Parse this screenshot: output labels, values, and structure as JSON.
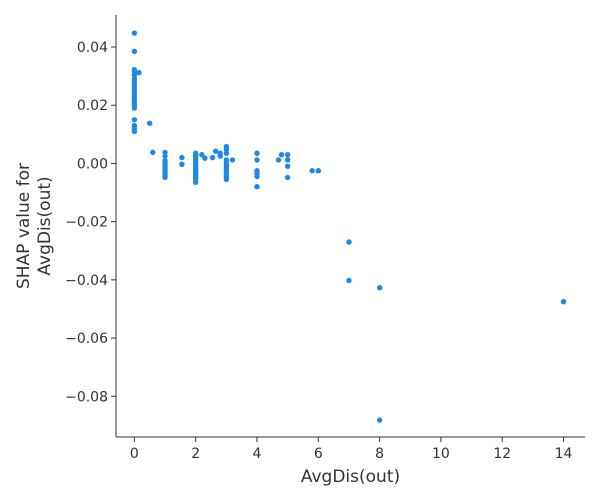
{
  "chart_data": {
    "type": "scatter",
    "title": "",
    "xlabel": "AvgDis(out)",
    "ylabel_lines": [
      "SHAP value for",
      "AvgDis(out)"
    ],
    "xlim": [
      -0.6,
      14.7
    ],
    "ylim": [
      -0.094,
      0.051
    ],
    "x_ticks": [
      0,
      2,
      4,
      6,
      8,
      10,
      12,
      14
    ],
    "x_tick_labels": [
      "0",
      "2",
      "4",
      "6",
      "8",
      "10",
      "12",
      "14"
    ],
    "y_ticks": [
      0.04,
      0.02,
      0.0,
      -0.02,
      -0.04,
      -0.06,
      -0.08
    ],
    "y_tick_labels": [
      "0.04",
      "0.02",
      "0.00",
      "−0.02",
      "−0.04",
      "−0.06",
      "−0.08"
    ],
    "grid": false,
    "point_color": "#1e88e5",
    "points": [
      [
        0,
        0.0448
      ],
      [
        0,
        0.0385
      ],
      [
        0,
        0.0322
      ],
      [
        0,
        0.0315
      ],
      [
        0,
        0.0303
      ],
      [
        0,
        0.029
      ],
      [
        0,
        0.028
      ],
      [
        0,
        0.027
      ],
      [
        0,
        0.026
      ],
      [
        0,
        0.025
      ],
      [
        0,
        0.024
      ],
      [
        0,
        0.023
      ],
      [
        0,
        0.022
      ],
      [
        0,
        0.021
      ],
      [
        0,
        0.02
      ],
      [
        0,
        0.019
      ],
      [
        0,
        0.015
      ],
      [
        0,
        0.013
      ],
      [
        0,
        0.012
      ],
      [
        0,
        0.011
      ],
      [
        0.15,
        0.0312
      ],
      [
        0.5,
        0.0138
      ],
      [
        0.6,
        0.0038
      ],
      [
        1,
        0.0038
      ],
      [
        1,
        0.0025
      ],
      [
        1,
        0.001
      ],
      [
        1,
        0.0002
      ],
      [
        1,
        -0.0005
      ],
      [
        1,
        -0.0012
      ],
      [
        1,
        -0.002
      ],
      [
        1,
        -0.0028
      ],
      [
        1,
        -0.0035
      ],
      [
        1,
        -0.0042
      ],
      [
        1,
        -0.0048
      ],
      [
        1.55,
        0.002
      ],
      [
        1.55,
        -0.0003
      ],
      [
        2,
        0.0035
      ],
      [
        2,
        0.0028
      ],
      [
        2,
        0.002
      ],
      [
        2,
        0.0012
      ],
      [
        2,
        0.0005
      ],
      [
        2,
        -0.0002
      ],
      [
        2,
        -0.001
      ],
      [
        2,
        -0.0018
      ],
      [
        2,
        -0.0025
      ],
      [
        2,
        -0.0032
      ],
      [
        2,
        -0.004
      ],
      [
        2,
        -0.0048
      ],
      [
        2,
        -0.0055
      ],
      [
        2,
        -0.0065
      ],
      [
        2.2,
        0.003
      ],
      [
        2.3,
        0.0018
      ],
      [
        2.55,
        0.002
      ],
      [
        2.65,
        0.0042
      ],
      [
        2.8,
        0.0035
      ],
      [
        2.8,
        0.0025
      ],
      [
        3,
        0.0058
      ],
      [
        3,
        0.0048
      ],
      [
        3,
        0.0035
      ],
      [
        3,
        0.0012
      ],
      [
        3,
        0.0005
      ],
      [
        3,
        -0.0005
      ],
      [
        3,
        -0.0012
      ],
      [
        3,
        -0.002
      ],
      [
        3,
        -0.0028
      ],
      [
        3,
        -0.0035
      ],
      [
        3,
        -0.0045
      ],
      [
        3,
        -0.0055
      ],
      [
        3.2,
        0.0012
      ],
      [
        4,
        0.0035
      ],
      [
        4,
        0.0012
      ],
      [
        4,
        -0.0025
      ],
      [
        4,
        -0.0035
      ],
      [
        4,
        -0.0045
      ],
      [
        4,
        -0.008
      ],
      [
        4.7,
        0.0012
      ],
      [
        4.8,
        0.003
      ],
      [
        5,
        0.003
      ],
      [
        5,
        0.0012
      ],
      [
        5,
        -0.001
      ],
      [
        5,
        -0.0048
      ],
      [
        5.8,
        -0.0025
      ],
      [
        6,
        -0.0025
      ],
      [
        7,
        -0.027
      ],
      [
        7,
        -0.0402
      ],
      [
        8,
        -0.0427
      ],
      [
        8,
        -0.0882
      ],
      [
        14,
        -0.0475
      ]
    ]
  }
}
